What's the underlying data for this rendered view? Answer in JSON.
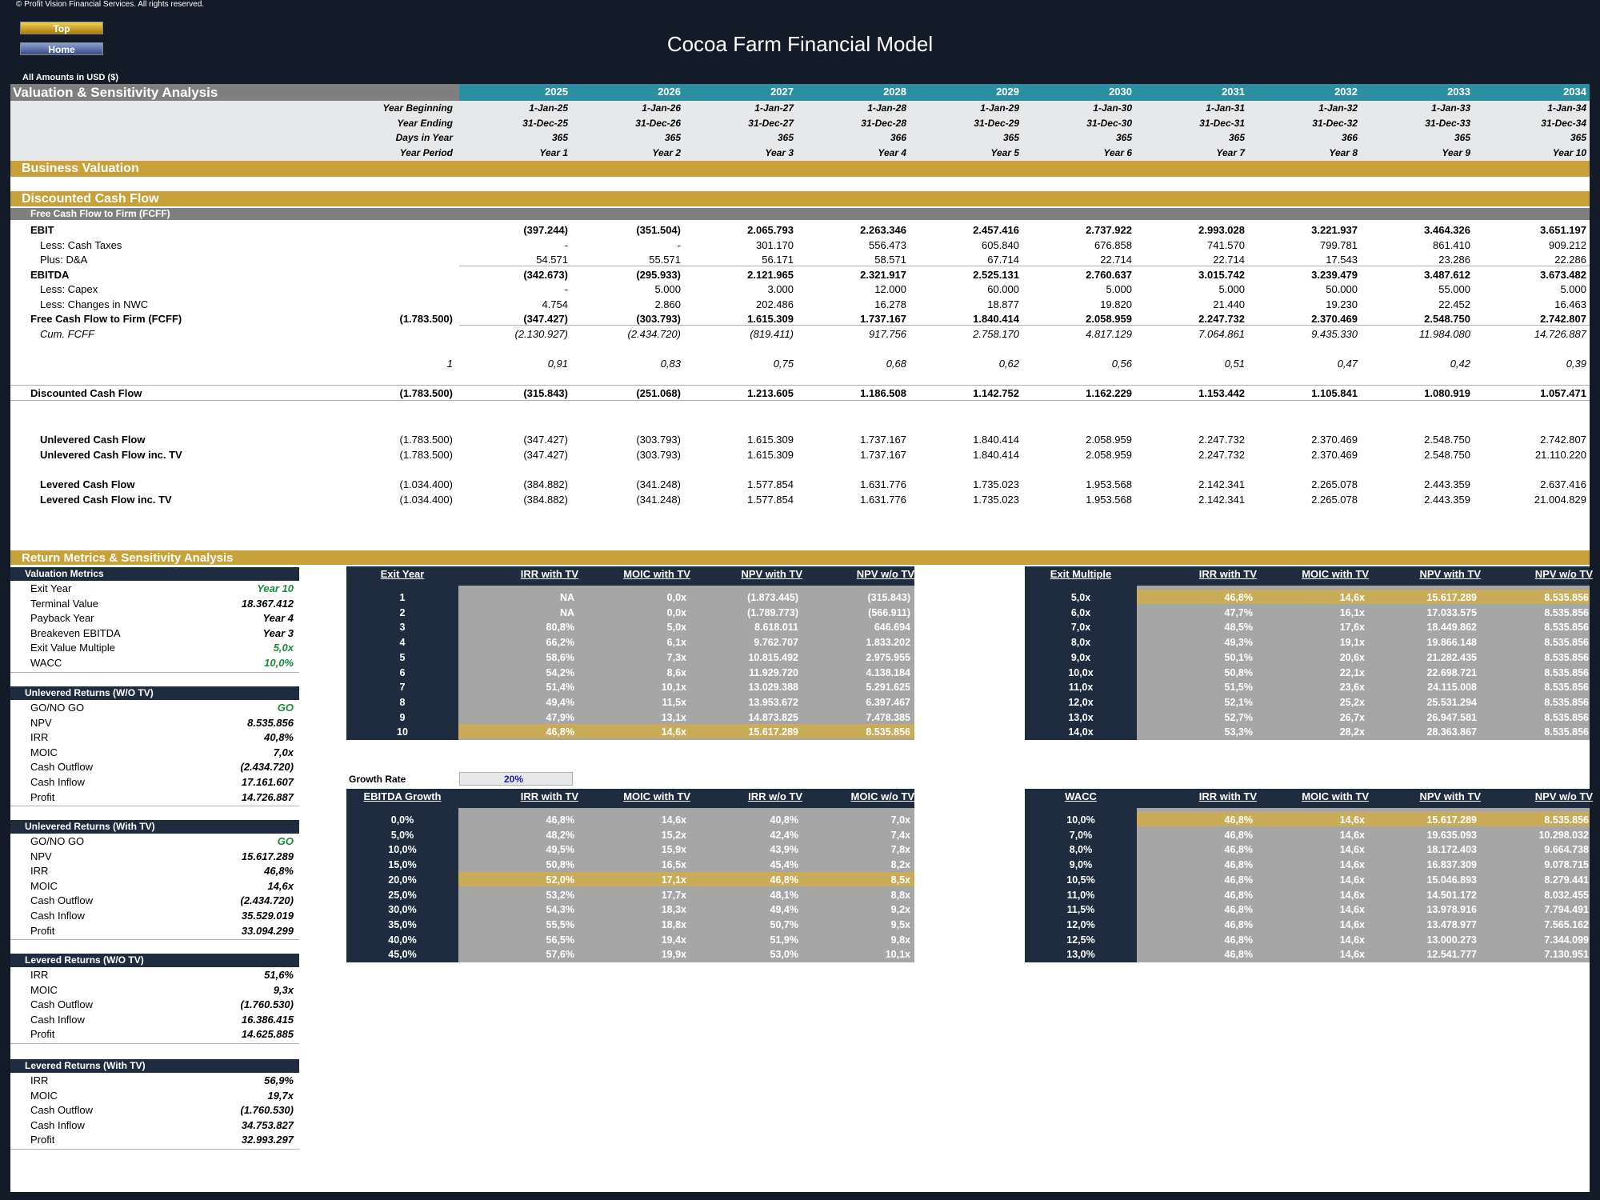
{
  "copyright": "© Profit Vision Financial Services. All rights reserved.",
  "nav": {
    "top": "Top",
    "home": "Home"
  },
  "title": "Cocoa Farm Financial Model",
  "amounts": "All Amounts in  USD ($)",
  "section_valuation": "Valuation & Sensitivity Analysis",
  "years": [
    "2025",
    "2026",
    "2027",
    "2028",
    "2029",
    "2030",
    "2031",
    "2032",
    "2033",
    "2034"
  ],
  "header_rows": [
    {
      "label": "Year Beginning",
      "values": [
        "1-Jan-25",
        "1-Jan-26",
        "1-Jan-27",
        "1-Jan-28",
        "1-Jan-29",
        "1-Jan-30",
        "1-Jan-31",
        "1-Jan-32",
        "1-Jan-33",
        "1-Jan-34"
      ]
    },
    {
      "label": "Year Ending",
      "values": [
        "31-Dec-25",
        "31-Dec-26",
        "31-Dec-27",
        "31-Dec-28",
        "31-Dec-29",
        "31-Dec-30",
        "31-Dec-31",
        "31-Dec-32",
        "31-Dec-33",
        "31-Dec-34"
      ]
    },
    {
      "label": "Days in Year",
      "values": [
        "365",
        "365",
        "365",
        "366",
        "365",
        "365",
        "365",
        "366",
        "365",
        "365"
      ]
    },
    {
      "label": "Year Period",
      "values": [
        "Year 1",
        "Year 2",
        "Year 3",
        "Year 4",
        "Year 5",
        "Year 6",
        "Year 7",
        "Year 8",
        "Year 9",
        "Year 10"
      ]
    }
  ],
  "section_business": "Business Valuation",
  "section_dcf": "Discounted Cash Flow",
  "fcff_header": "Free Cash Flow to Firm (FCFF)",
  "dcf_rows": [
    {
      "label": "EBIT",
      "bold": true,
      "indent": 0,
      "base": "",
      "values": [
        "(397.244)",
        "(351.504)",
        "2.065.793",
        "2.263.346",
        "2.457.416",
        "2.737.922",
        "2.993.028",
        "3.221.937",
        "3.464.326",
        "3.651.197"
      ]
    },
    {
      "label": "Less: Cash Taxes",
      "bold": false,
      "indent": 1,
      "base": "",
      "values": [
        "-",
        "-",
        "301.170",
        "556.473",
        "605.840",
        "676.858",
        "741.570",
        "799.781",
        "861.410",
        "909.212"
      ]
    },
    {
      "label": "Plus: D&A",
      "bold": false,
      "indent": 1,
      "base": "",
      "values": [
        "54.571",
        "55.571",
        "56.171",
        "58.571",
        "67.714",
        "22.714",
        "22.714",
        "17.543",
        "23.286",
        "22.286"
      ]
    },
    {
      "label": "EBITDA",
      "bold": true,
      "indent": 0,
      "base": "",
      "values": [
        "(342.673)",
        "(295.933)",
        "2.121.965",
        "2.321.917",
        "2.525.131",
        "2.760.637",
        "3.015.742",
        "3.239.479",
        "3.487.612",
        "3.673.482"
      ]
    },
    {
      "label": "Less: Capex",
      "bold": false,
      "indent": 1,
      "base": "",
      "values": [
        "-",
        "5.000",
        "3.000",
        "12.000",
        "60.000",
        "5.000",
        "5.000",
        "50.000",
        "55.000",
        "5.000"
      ]
    },
    {
      "label": "Less: Changes in NWC",
      "bold": false,
      "indent": 1,
      "base": "",
      "values": [
        "4.754",
        "2.860",
        "202.486",
        "16.278",
        "18.877",
        "19.820",
        "21.440",
        "19.230",
        "22.452",
        "16.463"
      ]
    },
    {
      "label": "Free Cash Flow to Firm (FCFF)",
      "bold": true,
      "indent": 0,
      "base": "(1.783.500)",
      "values": [
        "(347.427)",
        "(303.793)",
        "1.615.309",
        "1.737.167",
        "1.840.414",
        "2.058.959",
        "2.247.732",
        "2.370.469",
        "2.548.750",
        "2.742.807"
      ]
    },
    {
      "label": "Cum. FCFF",
      "bold": false,
      "italic": true,
      "indent": 1,
      "base": "",
      "values": [
        "(2.130.927)",
        "(2.434.720)",
        "(819.411)",
        "917.756",
        "2.758.170",
        "4.817.129",
        "7.064.861",
        "9.435.330",
        "11.984.080",
        "14.726.887"
      ]
    }
  ],
  "discount_factor": {
    "base": "1",
    "values": [
      "0,91",
      "0,83",
      "0,75",
      "0,68",
      "0,62",
      "0,56",
      "0,51",
      "0,47",
      "0,42",
      "0,39"
    ]
  },
  "discounted_cf": {
    "label": "Discounted Cash Flow",
    "base": "(1.783.500)",
    "values": [
      "(315.843)",
      "(251.068)",
      "1.213.605",
      "1.186.508",
      "1.142.752",
      "1.162.229",
      "1.153.442",
      "1.105.841",
      "1.080.919",
      "1.057.471"
    ]
  },
  "cash_flows": [
    {
      "label": "Unlevered Cash Flow",
      "base": "(1.783.500)",
      "values": [
        "(347.427)",
        "(303.793)",
        "1.615.309",
        "1.737.167",
        "1.840.414",
        "2.058.959",
        "2.247.732",
        "2.370.469",
        "2.548.750",
        "2.742.807"
      ]
    },
    {
      "label": "Unlevered Cash Flow inc. TV",
      "base": "(1.783.500)",
      "values": [
        "(347.427)",
        "(303.793)",
        "1.615.309",
        "1.737.167",
        "1.840.414",
        "2.058.959",
        "2.247.732",
        "2.370.469",
        "2.548.750",
        "21.110.220"
      ]
    },
    {
      "label": "Levered Cash Flow",
      "base": "(1.034.400)",
      "values": [
        "(384.882)",
        "(341.248)",
        "1.577.854",
        "1.631.776",
        "1.735.023",
        "1.953.568",
        "2.142.341",
        "2.265.078",
        "2.443.359",
        "2.637.416"
      ]
    },
    {
      "label": "Levered Cash Flow inc. TV",
      "base": "(1.034.400)",
      "values": [
        "(384.882)",
        "(341.248)",
        "1.577.854",
        "1.631.776",
        "1.735.023",
        "1.953.568",
        "2.142.341",
        "2.265.078",
        "2.443.359",
        "21.004.829"
      ]
    }
  ],
  "section_returns": "Return Metrics & Sensitivity Analysis",
  "metric_boxes": [
    {
      "title": "Valuation Metrics",
      "rows": [
        [
          "Exit Year",
          "Year 10",
          true
        ],
        [
          "Terminal Value",
          "18.367.412",
          false
        ],
        [
          "Payback Year",
          "Year 4",
          false
        ],
        [
          "Breakeven EBITDA",
          "Year 3",
          false
        ],
        [
          "Exit Value Multiple",
          "5,0x",
          true
        ],
        [
          "WACC",
          "10,0%",
          true
        ]
      ]
    },
    {
      "title": "Unlevered Returns (W/O TV)",
      "rows": [
        [
          "GO/NO GO",
          "GO",
          true
        ],
        [
          "NPV",
          "8.535.856",
          false
        ],
        [
          "IRR",
          "40,8%",
          false
        ],
        [
          "MOIC",
          "7,0x",
          false
        ],
        [
          "Cash Outflow",
          "(2.434.720)",
          false
        ],
        [
          "Cash Inflow",
          "17.161.607",
          false
        ],
        [
          "Profit",
          "14.726.887",
          false
        ]
      ]
    },
    {
      "title": "Unlevered Returns (With TV)",
      "rows": [
        [
          "GO/NO GO",
          "GO",
          true
        ],
        [
          "NPV",
          "15.617.289",
          false
        ],
        [
          "IRR",
          "46,8%",
          false
        ],
        [
          "MOIC",
          "14,6x",
          false
        ],
        [
          "Cash Outflow",
          "(2.434.720)",
          false
        ],
        [
          "Cash Inflow",
          "35.529.019",
          false
        ],
        [
          "Profit",
          "33.094.299",
          false
        ]
      ]
    },
    {
      "title": "Levered Returns (W/O TV)",
      "rows": [
        [
          "IRR",
          "51,6%",
          false
        ],
        [
          "MOIC",
          "9,3x",
          false
        ],
        [
          "Cash Outflow",
          "(1.760.530)",
          false
        ],
        [
          "Cash Inflow",
          "16.386.415",
          false
        ],
        [
          "Profit",
          "14.625.885",
          false
        ]
      ]
    },
    {
      "title": "Levered Returns (With TV)",
      "rows": [
        [
          "IRR",
          "56,9%",
          false
        ],
        [
          "MOIC",
          "19,7x",
          false
        ],
        [
          "Cash Outflow",
          "(1.760.530)",
          false
        ],
        [
          "Cash Inflow",
          "34.753.827",
          false
        ],
        [
          "Profit",
          "32.993.297",
          false
        ]
      ]
    }
  ],
  "growth_rate_label": "Growth Rate",
  "growth_rate_value": "20%",
  "sens_tables": [
    {
      "headers": [
        "Exit Year",
        "IRR with TV",
        "MOIC with TV",
        "NPV with TV",
        "NPV w/o TV"
      ],
      "highlight": 9,
      "rows": [
        [
          "1",
          "NA",
          "0,0x",
          "(1.873.445)",
          "(315.843)"
        ],
        [
          "2",
          "NA",
          "0,0x",
          "(1.789.773)",
          "(566.911)"
        ],
        [
          "3",
          "80,8%",
          "5,0x",
          "8.618.011",
          "646.694"
        ],
        [
          "4",
          "66,2%",
          "6,1x",
          "9.762.707",
          "1.833.202"
        ],
        [
          "5",
          "58,6%",
          "7,3x",
          "10.815.492",
          "2.975.955"
        ],
        [
          "6",
          "54,2%",
          "8,6x",
          "11.929.720",
          "4.138.184"
        ],
        [
          "7",
          "51,4%",
          "10,1x",
          "13.029.388",
          "5.291.625"
        ],
        [
          "8",
          "49,4%",
          "11,5x",
          "13.953.672",
          "6.397.467"
        ],
        [
          "9",
          "47,9%",
          "13,1x",
          "14.873.825",
          "7.478.385"
        ],
        [
          "10",
          "46,8%",
          "14,6x",
          "15.617.289",
          "8.535.856"
        ]
      ]
    },
    {
      "headers": [
        "Exit Multiple",
        "IRR with TV",
        "MOIC with TV",
        "NPV with TV",
        "NPV w/o TV"
      ],
      "highlight": 0,
      "rows": [
        [
          "5,0x",
          "46,8%",
          "14,6x",
          "15.617.289",
          "8.535.856"
        ],
        [
          "6,0x",
          "47,7%",
          "16,1x",
          "17.033.575",
          "8.535.856"
        ],
        [
          "7,0x",
          "48,5%",
          "17,6x",
          "18.449.862",
          "8.535.856"
        ],
        [
          "8,0x",
          "49,3%",
          "19,1x",
          "19.866.148",
          "8.535.856"
        ],
        [
          "9,0x",
          "50,1%",
          "20,6x",
          "21.282.435",
          "8.535.856"
        ],
        [
          "10,0x",
          "50,8%",
          "22,1x",
          "22.698.721",
          "8.535.856"
        ],
        [
          "11,0x",
          "51,5%",
          "23,6x",
          "24.115.008",
          "8.535.856"
        ],
        [
          "12,0x",
          "52,1%",
          "25,2x",
          "25.531.294",
          "8.535.856"
        ],
        [
          "13,0x",
          "52,7%",
          "26,7x",
          "26.947.581",
          "8.535.856"
        ],
        [
          "14,0x",
          "53,3%",
          "28,2x",
          "28.363.867",
          "8.535.856"
        ]
      ]
    },
    {
      "headers": [
        "EBITDA Growth",
        "IRR with TV",
        "MOIC with TV",
        "IRR w/o TV",
        "MOIC w/o TV"
      ],
      "highlight": 4,
      "rows": [
        [
          "0,0%",
          "46,8%",
          "14,6x",
          "40,8%",
          "7,0x"
        ],
        [
          "5,0%",
          "48,2%",
          "15,2x",
          "42,4%",
          "7,4x"
        ],
        [
          "10,0%",
          "49,5%",
          "15,9x",
          "43,9%",
          "7,8x"
        ],
        [
          "15,0%",
          "50,8%",
          "16,5x",
          "45,4%",
          "8,2x"
        ],
        [
          "20,0%",
          "52,0%",
          "17,1x",
          "46,8%",
          "8,5x"
        ],
        [
          "25,0%",
          "53,2%",
          "17,7x",
          "48,1%",
          "8,8x"
        ],
        [
          "30,0%",
          "54,3%",
          "18,3x",
          "49,4%",
          "9,2x"
        ],
        [
          "35,0%",
          "55,5%",
          "18,8x",
          "50,7%",
          "9,5x"
        ],
        [
          "40,0%",
          "56,5%",
          "19,4x",
          "51,9%",
          "9,8x"
        ],
        [
          "45,0%",
          "57,6%",
          "19,9x",
          "53,0%",
          "10,1x"
        ]
      ]
    },
    {
      "headers": [
        "WACC",
        "IRR with TV",
        "MOIC with TV",
        "NPV with TV",
        "NPV w/o TV"
      ],
      "highlight": 0,
      "rows": [
        [
          "10,0%",
          "46,8%",
          "14,6x",
          "15.617.289",
          "8.535.856"
        ],
        [
          "7,0%",
          "46,8%",
          "14,6x",
          "19.635.093",
          "10.298.032"
        ],
        [
          "8,0%",
          "46,8%",
          "14,6x",
          "18.172.403",
          "9.664.738"
        ],
        [
          "9,0%",
          "46,8%",
          "14,6x",
          "16.837.309",
          "9.078.715"
        ],
        [
          "10,5%",
          "46,8%",
          "14,6x",
          "15.046.893",
          "8.279.441"
        ],
        [
          "11,0%",
          "46,8%",
          "14,6x",
          "14.501.172",
          "8.032.455"
        ],
        [
          "11,5%",
          "46,8%",
          "14,6x",
          "13.978.916",
          "7.794.491"
        ],
        [
          "12,0%",
          "46,8%",
          "14,6x",
          "13.478.977",
          "7.565.162"
        ],
        [
          "12,5%",
          "46,8%",
          "14,6x",
          "13.000.273",
          "7.344.099"
        ],
        [
          "13,0%",
          "46,8%",
          "14,6x",
          "12.541.777",
          "7.130.951"
        ]
      ]
    }
  ],
  "colors": {
    "dark": "#1f2b3e",
    "teal": "#2b8fa1",
    "gold": "#c9a13a",
    "grey_band": "#7f7f7f",
    "sens_cell": "#a6a6a6",
    "highlight": "#c8ac5a"
  }
}
